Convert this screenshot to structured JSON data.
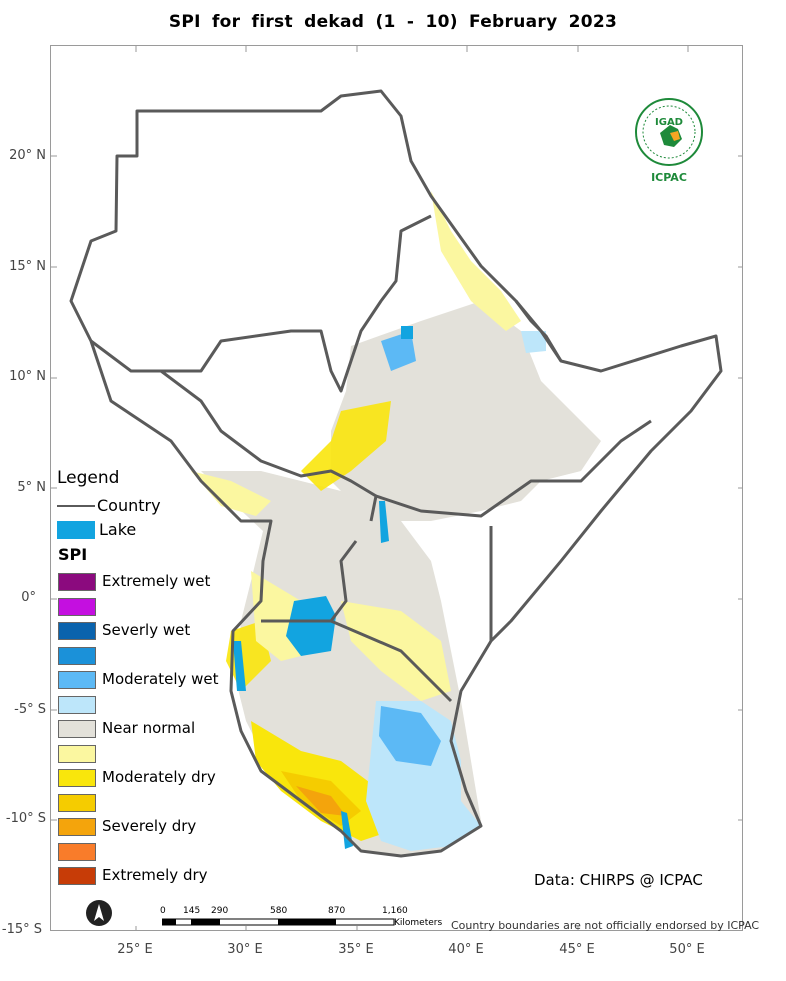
{
  "title": "SPI   for   first   dekad  (1 - 10)  February 2023",
  "lat_labels": [
    "20° N",
    "15° N",
    "10° N",
    "5° N",
    "0°",
    "-5° S",
    "-10° S",
    "-15° S"
  ],
  "lon_labels": [
    "25° E",
    "30° E",
    "35° E",
    "40° E",
    "45° E",
    "50° E"
  ],
  "legend": {
    "title": "Legend",
    "country": "Country",
    "lake": "Lake",
    "spi_title": "SPI"
  },
  "spi_classes": [
    {
      "label": "Extremely wet",
      "color": "#8b0a7e"
    },
    {
      "label": "",
      "color": "#c40fe0"
    },
    {
      "label": "Severly wet",
      "color": "#0a63ad"
    },
    {
      "label": "",
      "color": "#1b91d9"
    },
    {
      "label": "Moderately wet",
      "color": "#5cb9f5"
    },
    {
      "label": "",
      "color": "#bde6fa"
    },
    {
      "label": "Near normal",
      "color": "#e3e1da"
    },
    {
      "label": "",
      "color": "#fbf7a0"
    },
    {
      "label": "Moderately dry",
      "color": "#f9e60c"
    },
    {
      "label": "",
      "color": "#f5cc00"
    },
    {
      "label": "Severely dry",
      "color": "#f4a40c"
    },
    {
      "label": "",
      "color": "#f97c2a"
    },
    {
      "label": "Extremely dry",
      "color": "#c73c07"
    }
  ],
  "lake_color": "#12a4e0",
  "country_line_color": "#5a5a5a",
  "credit": "Data: CHIRPS @ ICPAC",
  "disclaimer": "Country boundaries are not officially endorsed by ICPAC",
  "scale": {
    "ticks": [
      "0",
      "145",
      "290",
      "580",
      "870",
      "1,160"
    ],
    "units": "Kilometers"
  },
  "logo": {
    "name": "IGAD",
    "org": "ICPAC",
    "color": "#1e8a3a"
  }
}
